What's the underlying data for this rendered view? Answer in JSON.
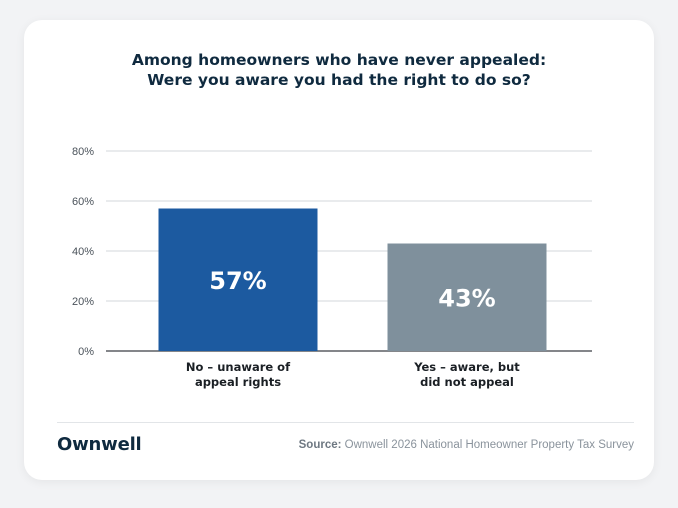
{
  "title_lines": [
    "Among homeowners who have never appealed:",
    "Were you aware you had the right to do so?"
  ],
  "chart_data": {
    "type": "bar",
    "categories": [
      [
        "No – unaware of",
        "appeal rights"
      ],
      [
        "Yes – aware, but",
        "did not appeal"
      ]
    ],
    "values": [
      57,
      43
    ],
    "data_labels": [
      "57%",
      "43%"
    ],
    "colors": [
      "#1c5aa0",
      "#7f909c"
    ],
    "ylim": [
      0,
      80
    ],
    "yticks": [
      0,
      20,
      40,
      60,
      80
    ],
    "ytick_labels": [
      "0%",
      "20%",
      "40%",
      "60%",
      "80%"
    ],
    "grid": true
  },
  "footer": {
    "logo_text": "Ownwell",
    "source_label": "Source:",
    "source_text": "Ownwell 2026 National Homeowner Property Tax Survey"
  }
}
